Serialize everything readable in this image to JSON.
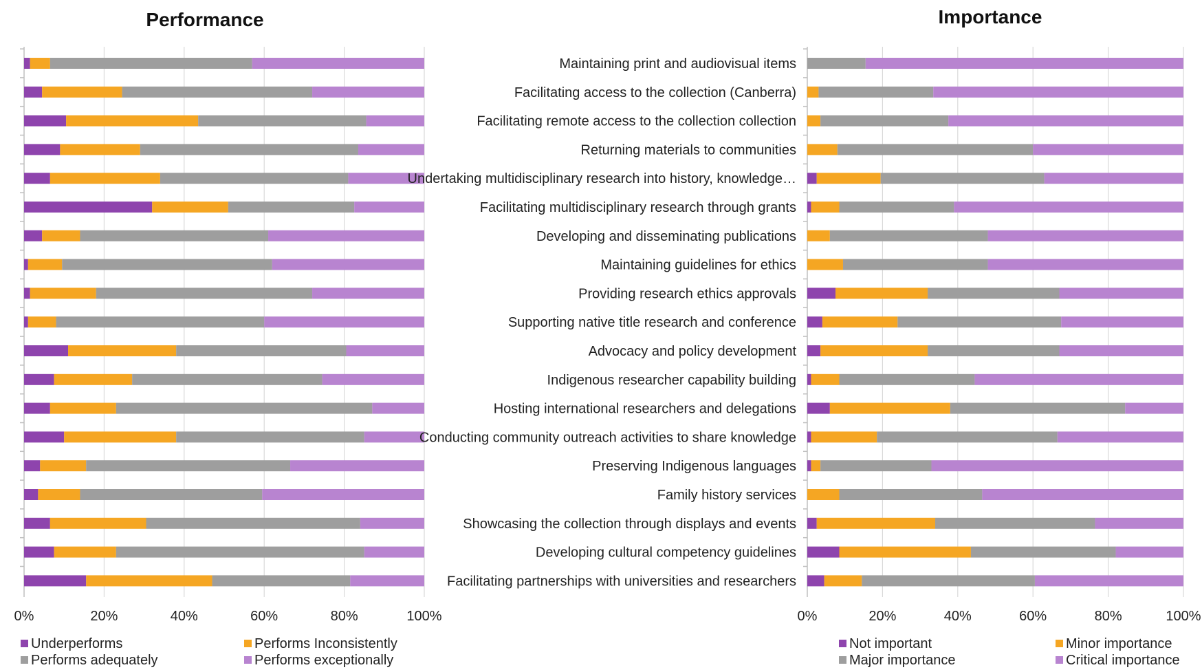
{
  "chart_data": [
    {
      "type": "bar",
      "orientation": "horizontal",
      "stacked": "percent",
      "title": "Performance",
      "categories": [
        "Maintaining print and audiovisual items",
        "Facilitating access to the collection (Canberra)",
        "Facilitating remote access to the collection collection",
        "Returning materials to communities",
        "Undertaking multidisciplinary research into history, knowledge…",
        "Facilitating multidisciplinary research through grants",
        "Developing and disseminating publications",
        "Maintaining guidelines for ethics",
        "Providing research ethics approvals",
        "Supporting native title research and conference",
        "Advocacy and policy development",
        "Indigenous researcher capability building",
        "Hosting international researchers and delegations",
        "Conducting community outreach activities to share knowledge",
        "Preserving Indigenous languages",
        "Family history services",
        "Showcasing the collection through displays and events",
        "Developing cultural competency guidelines",
        "Facilitating partnerships with universities and researchers"
      ],
      "xlim": [
        0,
        100
      ],
      "xticks": [
        "0%",
        "20%",
        "40%",
        "60%",
        "80%",
        "100%"
      ],
      "grid": true,
      "legend_position": "bottom",
      "series": [
        {
          "name": "Underperforms",
          "color": "#8e44ad",
          "values": [
            1.5,
            4.5,
            10.5,
            9,
            6.5,
            32,
            4.5,
            1,
            1.5,
            1,
            11,
            7.5,
            6.5,
            10,
            4,
            3.5,
            6.5,
            7.5,
            15.5
          ]
        },
        {
          "name": "Performs Inconsistently",
          "color": "#f5a623",
          "values": [
            5,
            20,
            33,
            20,
            27.5,
            19,
            9.5,
            8.5,
            16.5,
            7,
            27,
            19.5,
            16.5,
            28,
            11.5,
            10.5,
            24,
            15.5,
            31.5
          ]
        },
        {
          "name": "Performs adequately",
          "color": "#9e9e9e",
          "values": [
            50.5,
            47.5,
            42,
            54.5,
            47,
            31.5,
            47,
            52.5,
            54,
            52,
            42.5,
            47.5,
            64,
            47,
            51,
            45.5,
            53.5,
            62,
            34.5
          ]
        },
        {
          "name": "Performs exceptionally",
          "color": "#b884d0",
          "values": [
            43,
            28,
            14.5,
            16.5,
            19,
            17.5,
            39,
            38,
            28,
            40,
            19.5,
            25.5,
            13,
            15,
            33.5,
            40.5,
            16,
            15,
            18.5
          ]
        }
      ]
    },
    {
      "type": "bar",
      "orientation": "horizontal",
      "stacked": "percent",
      "title": "Importance",
      "categories": [
        "Maintaining print and audiovisual items",
        "Facilitating access to the collection (Canberra)",
        "Facilitating remote access to the collection collection",
        "Returning materials to communities",
        "Undertaking multidisciplinary research into history, knowledge…",
        "Facilitating multidisciplinary research through grants",
        "Developing and disseminating publications",
        "Maintaining guidelines for ethics",
        "Providing research ethics approvals",
        "Supporting native title research and conference",
        "Advocacy and policy development",
        "Indigenous researcher capability building",
        "Hosting international researchers and delegations",
        "Conducting community outreach activities to share knowledge",
        "Preserving Indigenous languages",
        "Family history services",
        "Showcasing the collection through displays and events",
        "Developing cultural competency guidelines",
        "Facilitating partnerships with universities and researchers"
      ],
      "xlim": [
        0,
        100
      ],
      "xticks": [
        "0%",
        "20%",
        "40%",
        "60%",
        "80%",
        "100%"
      ],
      "grid": true,
      "legend_position": "bottom",
      "series": [
        {
          "name": "Not important",
          "color": "#8e44ad",
          "values": [
            0,
            0,
            0,
            0,
            2.5,
            1,
            0,
            0,
            7.5,
            4,
            3.5,
            1,
            6,
            1,
            1,
            0,
            2.5,
            8.5,
            4.5
          ]
        },
        {
          "name": "Minor importance",
          "color": "#f5a623",
          "values": [
            0,
            3,
            3.5,
            8,
            17,
            7.5,
            6,
            9.5,
            24.5,
            20,
            28.5,
            7.5,
            32,
            17.5,
            2.5,
            8.5,
            31.5,
            35,
            10
          ]
        },
        {
          "name": "Major importance",
          "color": "#9e9e9e",
          "values": [
            15.5,
            30.5,
            34,
            52,
            43.5,
            30.5,
            42,
            38.5,
            35,
            43.5,
            35,
            36,
            46.5,
            48,
            29.5,
            38,
            42.5,
            38.5,
            46
          ]
        },
        {
          "name": "Critical importance",
          "color": "#b884d0",
          "values": [
            84.5,
            66.5,
            62.5,
            40,
            37,
            61,
            52,
            52,
            33,
            32.5,
            33,
            55.5,
            15.5,
            33.5,
            67,
            53.5,
            23.5,
            18,
            39.5
          ]
        }
      ]
    }
  ]
}
